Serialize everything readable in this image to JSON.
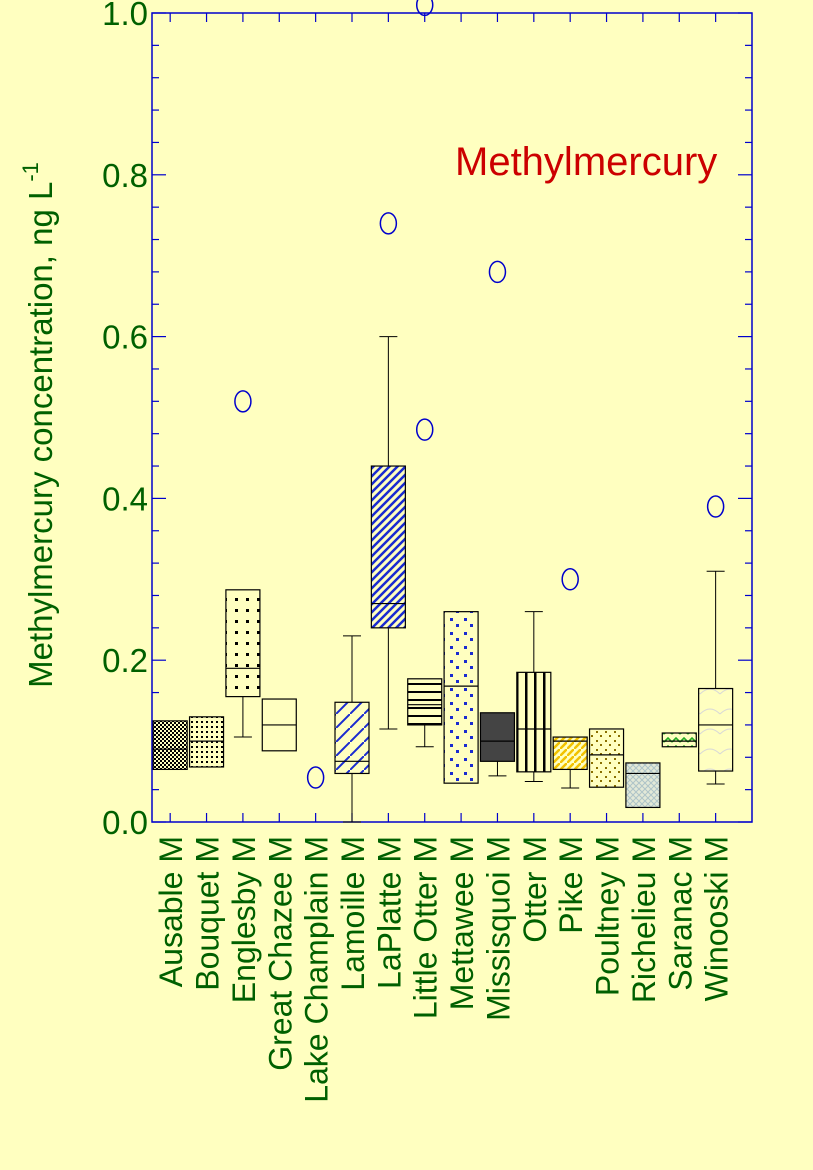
{
  "chart_data": {
    "type": "box",
    "title": "Methylmercury",
    "ylabel": "Methylmercury concentration, ng L",
    "ylabel_superscript": "-1",
    "ylim": [
      0,
      1.0
    ],
    "yticks": [
      "0.0",
      "0.2",
      "0.4",
      "0.6",
      "0.8",
      "1.0"
    ],
    "categories": [
      "Ausable M",
      "Bouquet M",
      "Englesby M",
      "Great Chazee M",
      "Lake Champlain M",
      "Lamoille M",
      "LaPlatte M",
      "Little Otter M",
      "Mettawee M",
      "Missisquoi M",
      "Otter M",
      "Pike M",
      "Poultney M",
      "Richelieu M",
      "Saranac M",
      "Winooski M"
    ],
    "boxes": [
      {
        "q1": 0.065,
        "median": 0.09,
        "q3": 0.125,
        "wlow": null,
        "whigh": null,
        "outliers": [],
        "color": "#000000"
      },
      {
        "q1": 0.068,
        "median": 0.1,
        "q3": 0.13,
        "wlow": null,
        "whigh": null,
        "outliers": [],
        "color": "#000000"
      },
      {
        "q1": 0.155,
        "median": 0.19,
        "q3": 0.287,
        "wlow": 0.105,
        "whigh": null,
        "outliers": [
          0.52
        ],
        "color": "#000000"
      },
      {
        "q1": 0.088,
        "median": 0.12,
        "q3": 0.152,
        "wlow": null,
        "whigh": null,
        "outliers": [],
        "color": "#000000"
      },
      {
        "q1": null,
        "median": null,
        "q3": null,
        "wlow": null,
        "whigh": null,
        "outliers": [
          0.055
        ],
        "color": "#000000"
      },
      {
        "q1": 0.06,
        "median": 0.075,
        "q3": 0.148,
        "wlow": 0.0,
        "whigh": 0.23,
        "outliers": [],
        "color": "#1a2bd0"
      },
      {
        "q1": 0.24,
        "median": 0.27,
        "q3": 0.44,
        "wlow": 0.115,
        "whigh": 0.6,
        "outliers": [
          0.74
        ],
        "color": "#1a2bd0"
      },
      {
        "q1": 0.12,
        "median": 0.145,
        "q3": 0.177,
        "wlow": 0.093,
        "whigh": null,
        "outliers": [
          0.485,
          1.01
        ],
        "color": "#000000"
      },
      {
        "q1": 0.048,
        "median": 0.168,
        "q3": 0.26,
        "wlow": null,
        "whigh": null,
        "outliers": [],
        "color": "#1a2bd0"
      },
      {
        "q1": 0.075,
        "median": 0.1,
        "q3": 0.135,
        "wlow": 0.057,
        "whigh": null,
        "outliers": [
          0.68
        ],
        "color": "#444444"
      },
      {
        "q1": 0.062,
        "median": 0.115,
        "q3": 0.185,
        "wlow": 0.05,
        "whigh": 0.26,
        "outliers": [],
        "color": "#000000"
      },
      {
        "q1": 0.065,
        "median": 0.1,
        "q3": 0.105,
        "wlow": 0.042,
        "whigh": null,
        "outliers": [
          0.3
        ],
        "color": "#f2c200"
      },
      {
        "q1": 0.043,
        "median": 0.083,
        "q3": 0.115,
        "wlow": null,
        "whigh": null,
        "outliers": [],
        "color": "#8a7000"
      },
      {
        "q1": 0.018,
        "median": 0.06,
        "q3": 0.073,
        "wlow": null,
        "whigh": null,
        "outliers": [],
        "color": "#9fb6c0"
      },
      {
        "q1": 0.093,
        "median": 0.1,
        "q3": 0.11,
        "wlow": null,
        "whigh": null,
        "outliers": [],
        "color": "#22aa22"
      },
      {
        "q1": 0.063,
        "median": 0.12,
        "q3": 0.165,
        "wlow": 0.047,
        "whigh": 0.31,
        "outliers": [
          0.39
        ],
        "color": "#c8c8c8"
      }
    ],
    "colors": {
      "background": "#ffffc0",
      "axis": "#0000cc",
      "text": "#006000",
      "title": "#cc0000",
      "outlier": "#0000cc",
      "whisker": "#000000"
    }
  }
}
